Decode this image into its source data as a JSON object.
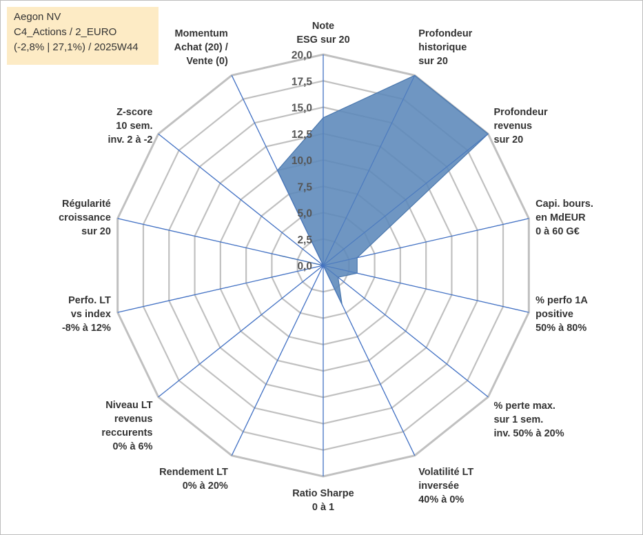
{
  "info": {
    "line1": "Aegon NV",
    "line2": "C4_Actions / 2_EURO",
    "line3": "(-2,8% | 27,1%) / 2025W44"
  },
  "colors": {
    "grid": "#c0c0c0",
    "spoke": "#4472c4",
    "fill": "#5b87ba",
    "fill_stroke": "#4a77ad",
    "info_bg": "#fdebc5"
  },
  "chart_data": {
    "type": "radar",
    "title": "",
    "rmax": 20,
    "ticks": [
      "0,0",
      "2,5",
      "5,0",
      "7,5",
      "10,0",
      "12,5",
      "15,0",
      "17,5",
      "20,0"
    ],
    "tick_values": [
      0,
      2.5,
      5,
      7.5,
      10,
      12.5,
      15,
      17.5,
      20
    ],
    "grid": true,
    "axes": [
      [
        "Note",
        "ESG sur 20"
      ],
      [
        "Profondeur",
        "historique",
        "sur 20"
      ],
      [
        "Profondeur",
        "revenus",
        "sur 20"
      ],
      [
        "Capi. bours.",
        "en MdEUR",
        "0 à 60 G€"
      ],
      [
        "% perfo 1A",
        "positive",
        "50% à 80%"
      ],
      [
        "% perte max.",
        "sur 1 sem.",
        "inv. 50% à 20%"
      ],
      [
        "Volatilité LT",
        "inversée",
        "40% à 0%"
      ],
      [
        "Ratio Sharpe",
        "0 à 1"
      ],
      [
        "Rendement LT",
        "0% à 20%"
      ],
      [
        "Niveau LT",
        "revenus",
        "reccurents",
        "0% à 6%"
      ],
      [
        "Perfo. LT",
        "vs index",
        "-8% à 12%"
      ],
      [
        "Régularité",
        "croissance",
        "sur 20"
      ],
      [
        "Z-score",
        "10 sem.",
        "inv. 2 à -2"
      ],
      [
        "Momentum",
        "Achat (20) /",
        "Vente (0)"
      ]
    ],
    "series": [
      {
        "values": [
          14,
          20,
          20,
          3.3,
          3.3,
          1.8,
          4.1,
          0,
          0,
          0,
          0,
          4.3,
          0,
          10
        ]
      }
    ]
  }
}
